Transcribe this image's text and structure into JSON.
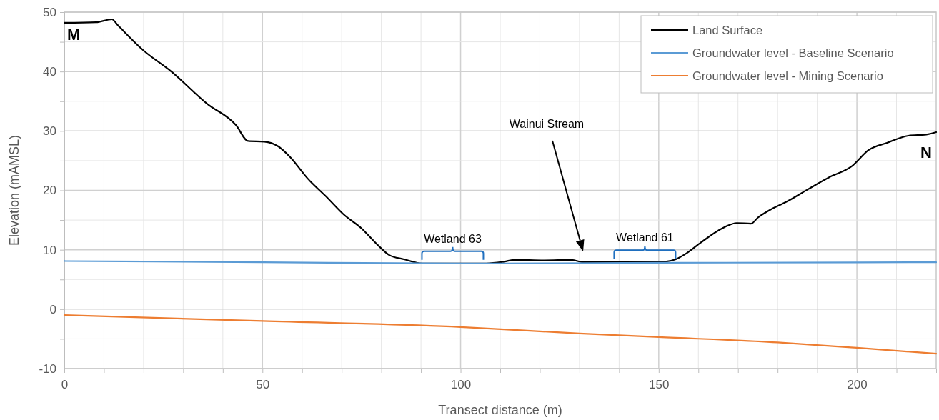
{
  "chart_data": {
    "type": "line",
    "xlabel": "Transect distance (m)",
    "ylabel": "Elevation (mAMSL)",
    "xlim": [
      0,
      220
    ],
    "ylim": [
      -10,
      50
    ],
    "xticks": [
      0,
      {
        "value": 10,
        "label": null
      },
      {
        "value": 20,
        "label": null
      },
      {
        "value": 30,
        "label": null
      },
      {
        "value": 40,
        "label": null
      },
      50,
      {
        "value": 60,
        "label": null
      },
      {
        "value": 70,
        "label": null
      },
      {
        "value": 80,
        "label": null
      },
      {
        "value": 90,
        "label": null
      },
      100,
      {
        "value": 110,
        "label": null
      },
      {
        "value": 120,
        "label": null
      },
      {
        "value": 130,
        "label": null
      },
      {
        "value": 140,
        "label": null
      },
      150,
      {
        "value": 160,
        "label": null
      },
      {
        "value": 170,
        "label": null
      },
      {
        "value": 180,
        "label": null
      },
      {
        "value": 190,
        "label": null
      },
      200,
      {
        "value": 210,
        "label": null
      }
    ],
    "yticks": [
      -10,
      {
        "value": -5,
        "label": null
      },
      0,
      {
        "value": 5,
        "label": null
      },
      10,
      {
        "value": 15,
        "label": null
      },
      20,
      {
        "value": 25,
        "label": null
      },
      30,
      {
        "value": 35,
        "label": null
      },
      40,
      {
        "value": 45,
        "label": null
      },
      50
    ],
    "grid": true,
    "legend": "top right",
    "marker": "none",
    "line_style": "solid",
    "series": [
      {
        "name": "Land Surface",
        "color": "#000000",
        "x": [
          0,
          8,
          12,
          13.5,
          19.9,
          27,
          36,
          43.3,
          46.4,
          50.5,
          54,
          57,
          61.4,
          66,
          70.4,
          75,
          79.4,
          82,
          85.7,
          90.3,
          95.7,
          106.5,
          111,
          113.7,
          121,
          128,
          131,
          135.4,
          142.6,
          151.6,
          154.3,
          157,
          160.6,
          166,
          169.7,
          173.3,
          175,
          177.8,
          182.3,
          187.7,
          193,
          198.6,
          203,
          207.6,
          213,
          217.5,
          220
        ],
        "values": [
          48.2,
          48.3,
          48.8,
          47.8,
          43.6,
          40,
          34.6,
          31,
          28.3,
          28.2,
          27.4,
          25.6,
          22,
          19,
          16,
          13.6,
          10.6,
          9.1,
          8.4,
          7.7,
          7.7,
          7.7,
          8,
          8.3,
          8.2,
          8.3,
          7.9,
          7.9,
          7.9,
          8,
          8.4,
          9.4,
          11.2,
          13.6,
          14.5,
          14.4,
          15.4,
          16.6,
          18.1,
          20.2,
          22.2,
          24,
          26.8,
          28,
          29.2,
          29.4,
          29.8
        ]
      },
      {
        "name": "Groundwater level - Baseline Scenario",
        "color": "#5b9bd5",
        "x": [
          0,
          50,
          100,
          150,
          220
        ],
        "values": [
          8.1,
          7.9,
          7.7,
          7.8,
          7.9
        ]
      },
      {
        "name": "Groundwater level - Mining Scenario",
        "color": "#ed7d31",
        "x": [
          0,
          50,
          100,
          130,
          150,
          180,
          200,
          220
        ],
        "values": [
          -1,
          -2,
          -3,
          -4.1,
          -4.7,
          -5.6,
          -6.5,
          -7.5
        ]
      }
    ],
    "annotations": [
      {
        "text": "M",
        "x": 0,
        "y": 48.2
      },
      {
        "text": "N",
        "x": 220,
        "y": 29.8
      },
      "Wainui Stream",
      {
        "text": "Wetland 63",
        "x": 98,
        "y": 7.7
      },
      {
        "text": "Wetland 61",
        "x": 146.5,
        "y": 7.9
      }
    ]
  }
}
